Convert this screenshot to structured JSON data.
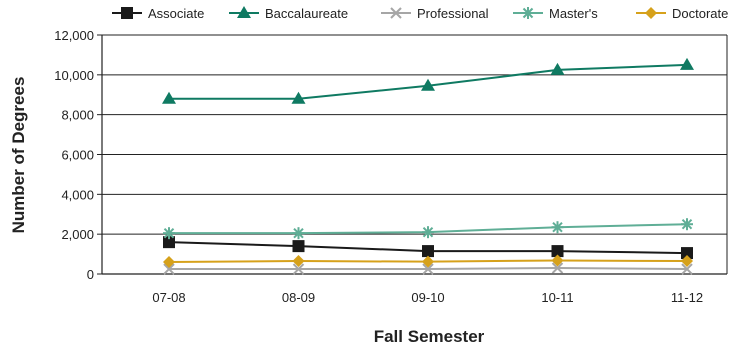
{
  "chart_data": {
    "type": "line",
    "xlabel": "Fall Semester",
    "ylabel": "Number of Degrees",
    "categories": [
      "07-08",
      "08-09",
      "09-10",
      "10-11",
      "11-12"
    ],
    "y_ticks": [
      "0",
      "2,000",
      "4,000",
      "6,000",
      "8,000",
      "10,000",
      "12,000"
    ],
    "ylim": [
      0,
      12000
    ],
    "grid": true,
    "legend_position": "top",
    "series": [
      {
        "name": "Associate",
        "marker": "square",
        "color": "#1a1a1a",
        "values": [
          1600,
          1400,
          1150,
          1150,
          1050
        ]
      },
      {
        "name": "Baccalaureate",
        "marker": "triangle",
        "color": "#0f7a62",
        "values": [
          8800,
          8800,
          9450,
          10250,
          10500
        ]
      },
      {
        "name": "Professional",
        "marker": "x",
        "color": "#a6a6a6",
        "values": [
          250,
          250,
          250,
          300,
          250
        ]
      },
      {
        "name": "Master's",
        "marker": "asterisk",
        "color": "#5fae96",
        "values": [
          2050,
          2050,
          2100,
          2350,
          2500
        ]
      },
      {
        "name": "Doctorate",
        "marker": "diamond",
        "color": "#d6a11b",
        "values": [
          600,
          650,
          620,
          680,
          650
        ]
      }
    ]
  }
}
